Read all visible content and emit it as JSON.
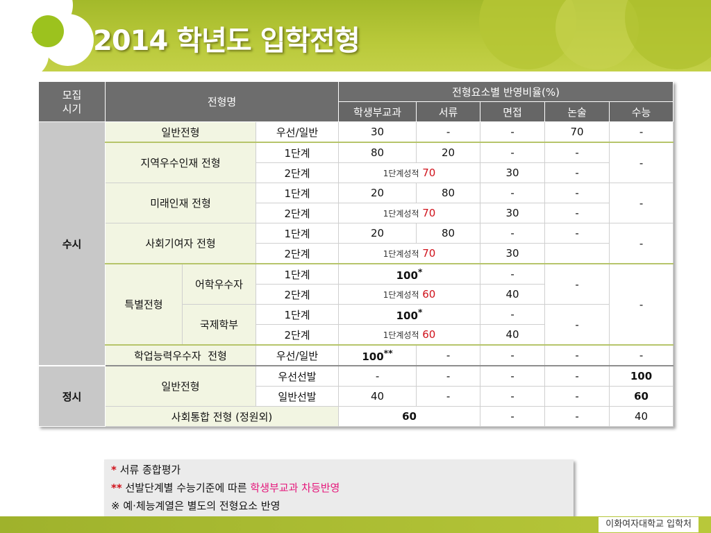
{
  "title": "2014 학년도 입학전형",
  "footer": "이화여자대학교 입학처",
  "table": {
    "h_period": "모집\n시기",
    "h_name": "전형명",
    "h_ratio": "전형요소별 반영비율(%)",
    "h_cols": [
      "학생부교과",
      "서류",
      "면접",
      "논술",
      "수능"
    ],
    "susi": "수시",
    "jeongsi": "정시",
    "names": {
      "general": "일반전형",
      "regional": "지역우수인재 전형",
      "future": "미래인재 전형",
      "social": "사회기여자 전형",
      "special": "특별전형",
      "language": "어학우수자",
      "intl": "국제학부",
      "academic": "학업능력우수자  전형",
      "general2": "일반전형",
      "social2": "사회통합 전형 (정원외)"
    },
    "steps": {
      "priority_general": "우선/일반",
      "step1": "1단계",
      "step2": "2단계",
      "priority_select": "우선선발",
      "general_select": "일반선발"
    },
    "v": {
      "dash": "-",
      "v30": "30",
      "v70": "70",
      "v80": "80",
      "v20": "20",
      "v40": "40",
      "v60": "60",
      "v100": "100",
      "step1_score": "1단계성적",
      "star1": "*",
      "star2": "**"
    }
  },
  "notes": {
    "n1_mark": "*",
    "n1_text": " 서류 종합평가",
    "n2_mark": "**",
    "n2_text": " 선발단계별 수능기준에 따른 ",
    "n2_emph": "학생부교과 차등반영",
    "n3_text": "※ 예·체능계열은 별도의 전형요소 반영"
  },
  "colors": {
    "header_green": "#a3b92a",
    "accent_red": "#d0121b",
    "pink": "#e5157a",
    "header_gray": "#6d6d6d"
  }
}
